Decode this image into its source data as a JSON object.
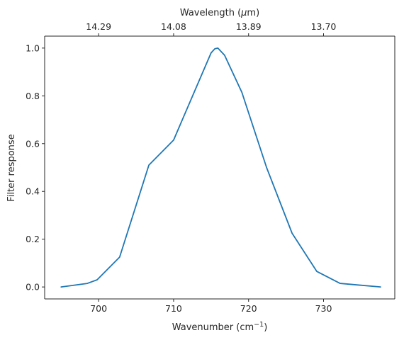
{
  "chart_data": {
    "type": "line",
    "xlabel": "Wavenumber (cm",
    "xlabel_sup": "−1",
    "xlabel_close": ")",
    "ylabel": "Filter response",
    "top_xlabel": "Wavelength (",
    "top_xlabel_mu": "μ",
    "top_xlabel_close": "m)",
    "xlim": [
      692.8,
      739.5
    ],
    "ylim": [
      -0.05,
      1.05
    ],
    "grid": false,
    "line_color": "#1f77b4",
    "x_ticks": [
      {
        "value": 700,
        "label": "700"
      },
      {
        "value": 710,
        "label": "710"
      },
      {
        "value": 720,
        "label": "720"
      },
      {
        "value": 730,
        "label": "730"
      }
    ],
    "y_ticks": [
      {
        "value": 0.0,
        "label": "0.0"
      },
      {
        "value": 0.2,
        "label": "0.2"
      },
      {
        "value": 0.4,
        "label": "0.4"
      },
      {
        "value": 0.6,
        "label": "0.6"
      },
      {
        "value": 0.8,
        "label": "0.8"
      },
      {
        "value": 1.0,
        "label": "1.0"
      }
    ],
    "top_ticks": [
      {
        "label": "14.29"
      },
      {
        "label": "14.08"
      },
      {
        "label": "13.89"
      },
      {
        "label": "13.70"
      }
    ],
    "series": [
      {
        "x": [
          695.0,
          698.5,
          699.8,
          702.8,
          706.7,
          710.0,
          715.0,
          715.5,
          715.9,
          716.8,
          719.1,
          722.4,
          725.8,
          729.1,
          732.2,
          737.6
        ],
        "y": [
          0.0,
          0.015,
          0.03,
          0.125,
          0.51,
          0.615,
          0.98,
          0.997,
          1.0,
          0.97,
          0.815,
          0.5,
          0.225,
          0.065,
          0.015,
          0.0
        ]
      }
    ]
  }
}
